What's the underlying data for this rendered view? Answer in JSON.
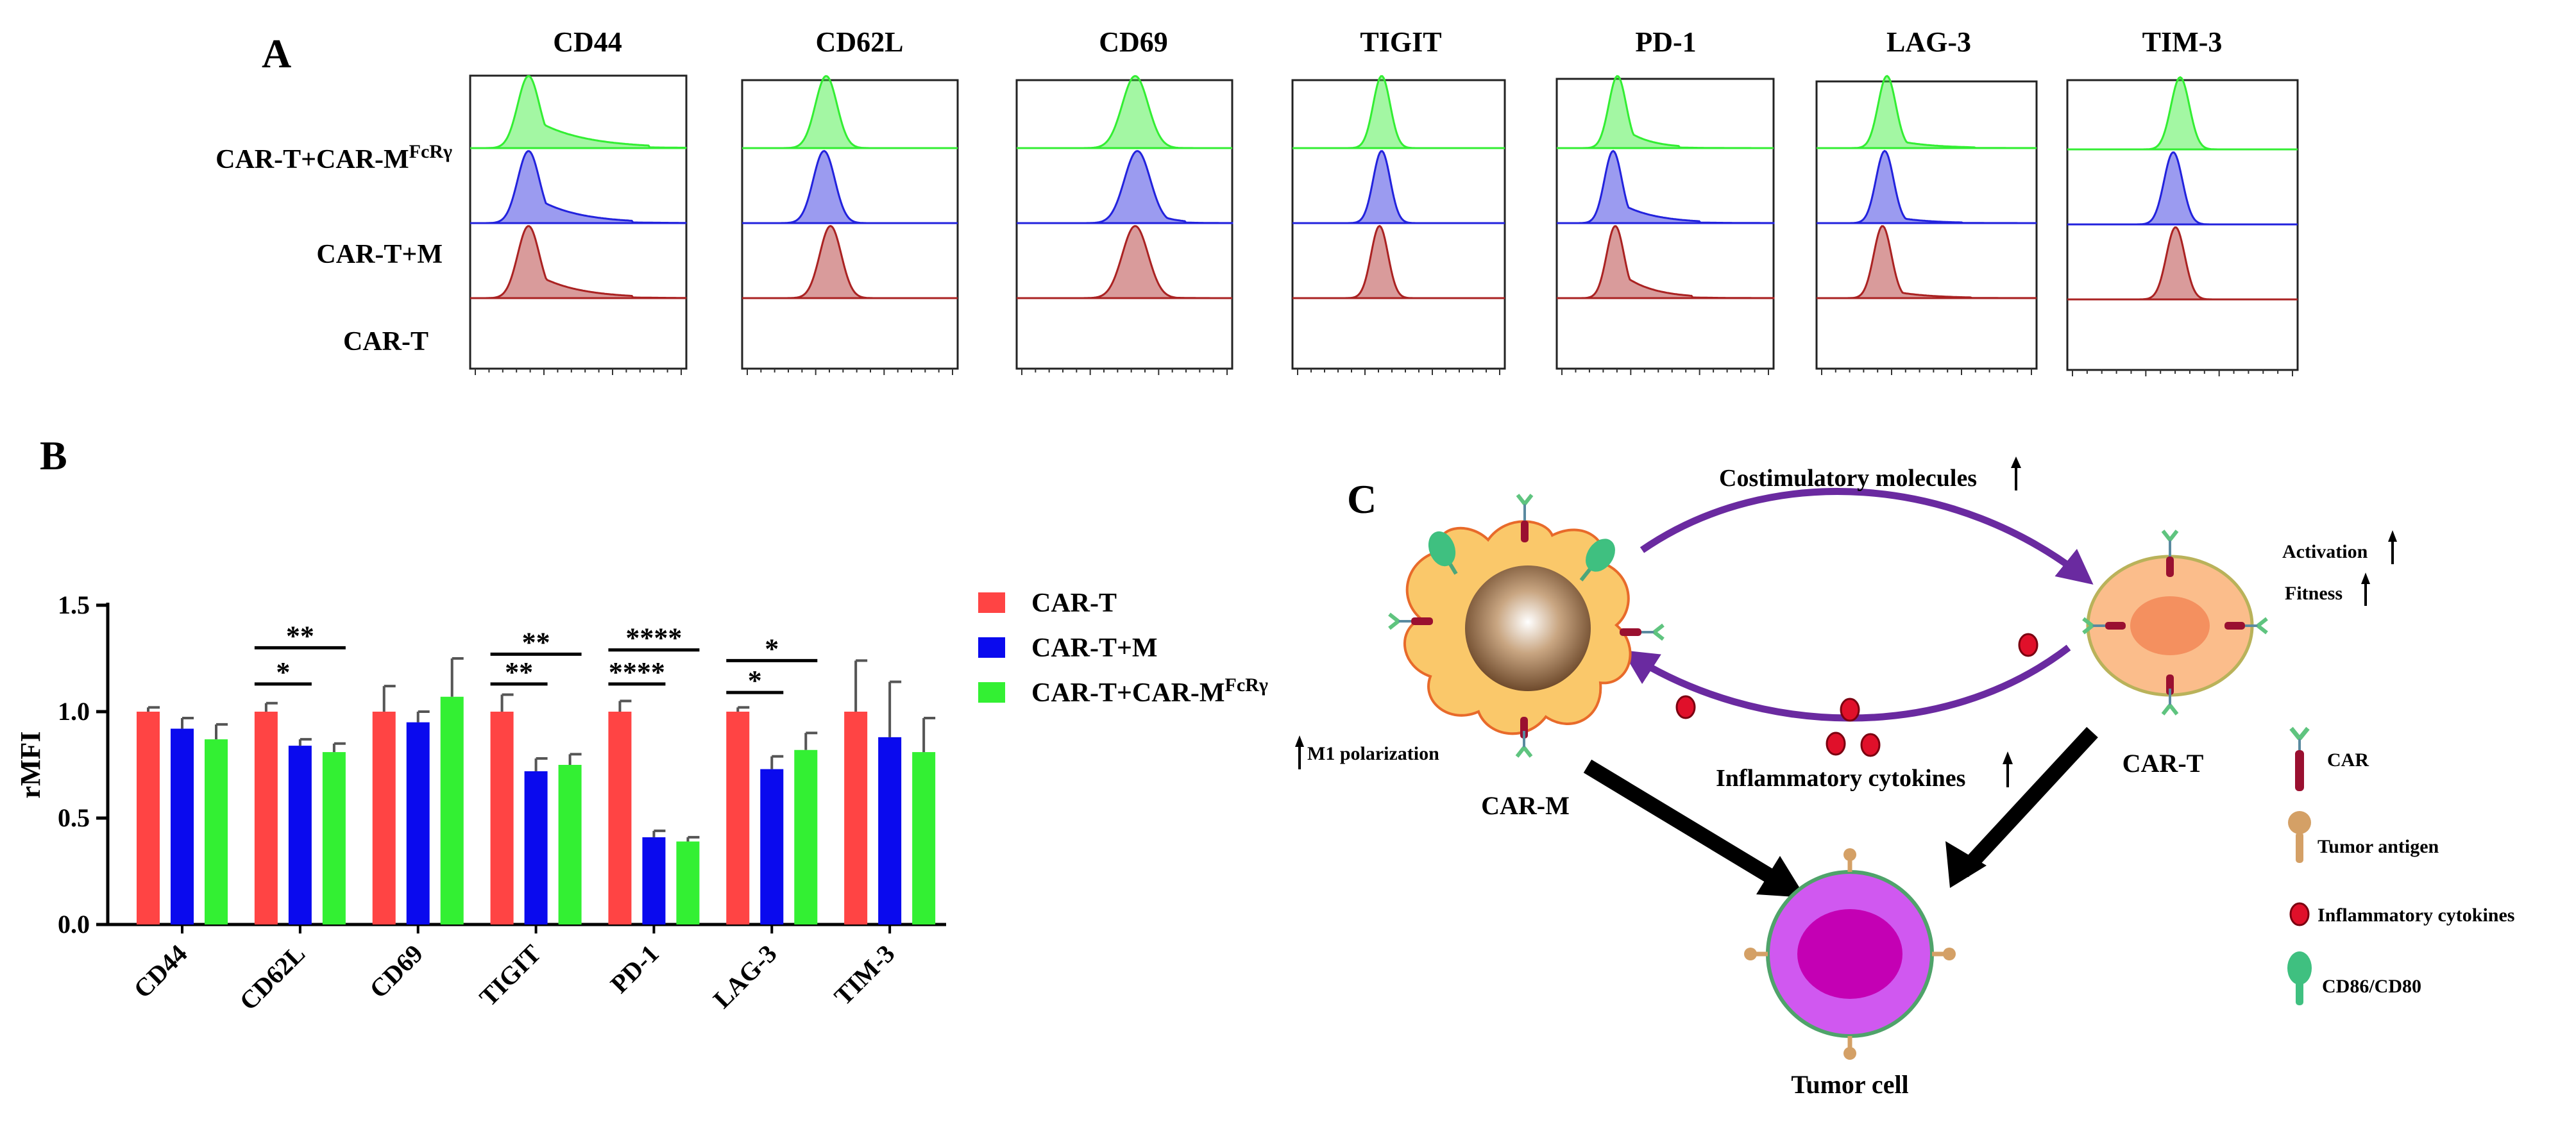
{
  "panels": {
    "a": "A",
    "b": "B",
    "c": "C"
  },
  "flow": {
    "markers": [
      "CD44",
      "CD62L",
      "CD69",
      "TIGIT",
      "PD-1",
      "LAG-3",
      "TIM-3"
    ],
    "rows": [
      {
        "base": "CAR-T+CAR-M",
        "sup": "FcRγ",
        "color": "#33ee33"
      },
      {
        "base": "CAR-T+M",
        "sup": "",
        "color": "#2222dd"
      },
      {
        "base": "CAR-T",
        "sup": "",
        "color": "#aa2222"
      }
    ]
  },
  "chart_data": {
    "type": "bar",
    "categories": [
      "CD44",
      "CD62L",
      "CD69",
      "TIGIT",
      "PD-1",
      "LAG-3",
      "TIM-3"
    ],
    "series": [
      {
        "name": "CAR-T",
        "color": "#ff4444",
        "values": [
          1.0,
          1.0,
          1.0,
          1.0,
          1.0,
          1.0,
          1.0
        ],
        "errors": [
          0.02,
          0.04,
          0.12,
          0.08,
          0.05,
          0.02,
          0.24
        ]
      },
      {
        "name": "CAR-T+M",
        "color": "#0a0aee",
        "values": [
          0.92,
          0.84,
          0.95,
          0.72,
          0.41,
          0.73,
          0.88
        ],
        "errors": [
          0.05,
          0.03,
          0.05,
          0.06,
          0.03,
          0.06,
          0.26
        ]
      },
      {
        "name": "CAR-T+CAR-M",
        "name_sup": "FcRγ",
        "color": "#33f033",
        "values": [
          0.87,
          0.81,
          1.07,
          0.75,
          0.39,
          0.82,
          0.81
        ],
        "errors": [
          0.07,
          0.04,
          0.18,
          0.05,
          0.02,
          0.08,
          0.16
        ]
      }
    ],
    "ylabel": "rMFI",
    "ylim": [
      0,
      1.5
    ],
    "yticks": [
      "0.0",
      "0.5",
      "1.0",
      "1.5"
    ],
    "yticks_values": [
      0,
      0.5,
      1.0,
      1.5
    ],
    "significance": [
      {
        "category": 1,
        "from": 0,
        "to": 1,
        "y": 1.13,
        "label": "*"
      },
      {
        "category": 1,
        "from": 0,
        "to": 2,
        "y": 1.3,
        "label": "**"
      },
      {
        "category": 3,
        "from": 0,
        "to": 1,
        "y": 1.13,
        "label": "**"
      },
      {
        "category": 3,
        "from": 0,
        "to": 2,
        "y": 1.27,
        "label": "**"
      },
      {
        "category": 4,
        "from": 0,
        "to": 1,
        "y": 1.13,
        "label": "****"
      },
      {
        "category": 4,
        "from": 0,
        "to": 2,
        "y": 1.29,
        "label": "****"
      },
      {
        "category": 5,
        "from": 0,
        "to": 1,
        "y": 1.09,
        "label": "*"
      },
      {
        "category": 5,
        "from": 0,
        "to": 2,
        "y": 1.24,
        "label": "*"
      }
    ]
  },
  "diagram": {
    "costim": "Costimulatory molecules",
    "infl_cyt": "Inflammatory cytokines",
    "activation": "Activation",
    "fitness": "Fitness",
    "m1": "M1 polarization",
    "car_m": "CAR-M",
    "car_t": "CAR-T",
    "tumor": "Tumor cell",
    "legend": [
      "CAR",
      "Tumor antigen",
      "Inflammatory cytokines",
      "CD86/CD80"
    ]
  }
}
